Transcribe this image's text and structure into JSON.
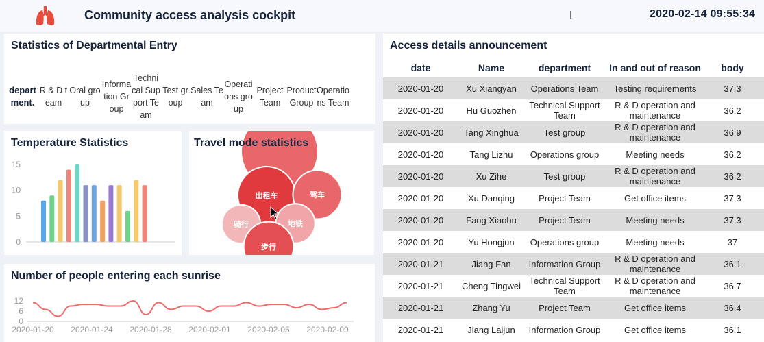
{
  "header": {
    "title": "Community access analysis cockpit",
    "datetime": "2020-02-14 09:55:34"
  },
  "departmental_entry": {
    "title": "Statistics of Departmental Entry",
    "header_label": "department.",
    "columns": [
      "R & D team",
      "Oral group",
      "Information Group",
      "Technical Support Team",
      "Test group",
      "Sales Team",
      "Operations group",
      "Project Team",
      "Product Group",
      "Operations Team"
    ]
  },
  "temperature": {
    "title": "Temperature Statistics"
  },
  "travel": {
    "title": "Travel mode statistics"
  },
  "sunrise": {
    "title": "Number of people entering each sunrise"
  },
  "access": {
    "title": "Access details announcement",
    "headers": [
      "date",
      "Name",
      "department",
      "In and out of reason",
      "body"
    ],
    "rows": [
      [
        "2020-01-20",
        "Xu Xiangyan",
        "Operations Team",
        "Testing requirements",
        "37.3"
      ],
      [
        "2020-01-20",
        "Hu Guozhen",
        "Technical Support Team",
        "R & D operation and maintenance",
        "36.2"
      ],
      [
        "2020-01-20",
        "Tang Xinghua",
        "Test group",
        "R & D operation and maintenance",
        "36.9"
      ],
      [
        "2020-01-20",
        "Tang Lizhu",
        "Operations group",
        "Meeting needs",
        "36.2"
      ],
      [
        "2020-01-20",
        "Xu Zihe",
        "Test group",
        "R & D operation and maintenance",
        "36.2"
      ],
      [
        "2020-01-20",
        "Xu Danqing",
        "Project Team",
        "Get office items",
        "37.3"
      ],
      [
        "2020-01-20",
        "Fang Xiaohu",
        "Project Team",
        "Meeting needs",
        "37.3"
      ],
      [
        "2020-01-20",
        "Yu Hongjun",
        "Operations group",
        "Meeting needs",
        "37"
      ],
      [
        "2020-01-21",
        "Jiang Fan",
        "Information Group",
        "R & D operation and maintenance",
        "36.1"
      ],
      [
        "2020-01-21",
        "Cheng Tingwei",
        "Technical Support Team",
        "R & D operation and maintenance",
        "36.7"
      ],
      [
        "2020-01-21",
        "Zhang Yu",
        "Project Team",
        "Get office items",
        "36.4"
      ],
      [
        "2020-01-21",
        "Jiang Laijun",
        "Information Group",
        "Get office items",
        "36.1"
      ]
    ]
  },
  "chart_data": [
    {
      "type": "bar",
      "title": "Temperature Statistics",
      "yticks": [
        "15",
        "10",
        "5",
        "0"
      ],
      "ylim": [
        0,
        15
      ],
      "values": [
        8,
        9,
        12,
        14,
        15,
        11,
        11,
        8,
        11,
        11,
        6,
        12,
        11
      ],
      "colors": [
        "#5aa7e6",
        "#6fd389",
        "#f5c86b",
        "#f0857a",
        "#72d4c8",
        "#8a93c8",
        "#6fa3e0",
        "#f3a45c",
        "#9b7bd1",
        "#f5c86b",
        "#6fd389",
        "#f5c86b",
        "#f0857a"
      ]
    },
    {
      "type": "bubble",
      "title": "Travel mode statistics",
      "labels": [
        "出租车",
        "驾车",
        "骑行",
        "地铁",
        "步行"
      ],
      "values": [
        100,
        55,
        20,
        22,
        60
      ],
      "colors": [
        "#e0393e",
        "#e9676a",
        "#f2b7b8",
        "#f0a6a8",
        "#e34f52"
      ]
    },
    {
      "type": "line",
      "title": "Number of people entering each sunrise",
      "yticks": [
        "12",
        "6",
        "0"
      ],
      "ylim": [
        0,
        12
      ],
      "xticks": [
        "2020-01-20",
        "2020-01-24",
        "2020-01-28",
        "2020-02-01",
        "2020-02-05",
        "2020-02-09"
      ],
      "values": [
        11,
        7,
        3,
        9,
        10,
        10,
        9,
        9,
        12,
        4,
        11,
        7,
        9,
        9,
        6,
        9,
        9,
        11,
        9,
        10,
        10,
        8,
        10,
        7,
        8,
        11
      ],
      "color": "#f06a6a"
    }
  ]
}
